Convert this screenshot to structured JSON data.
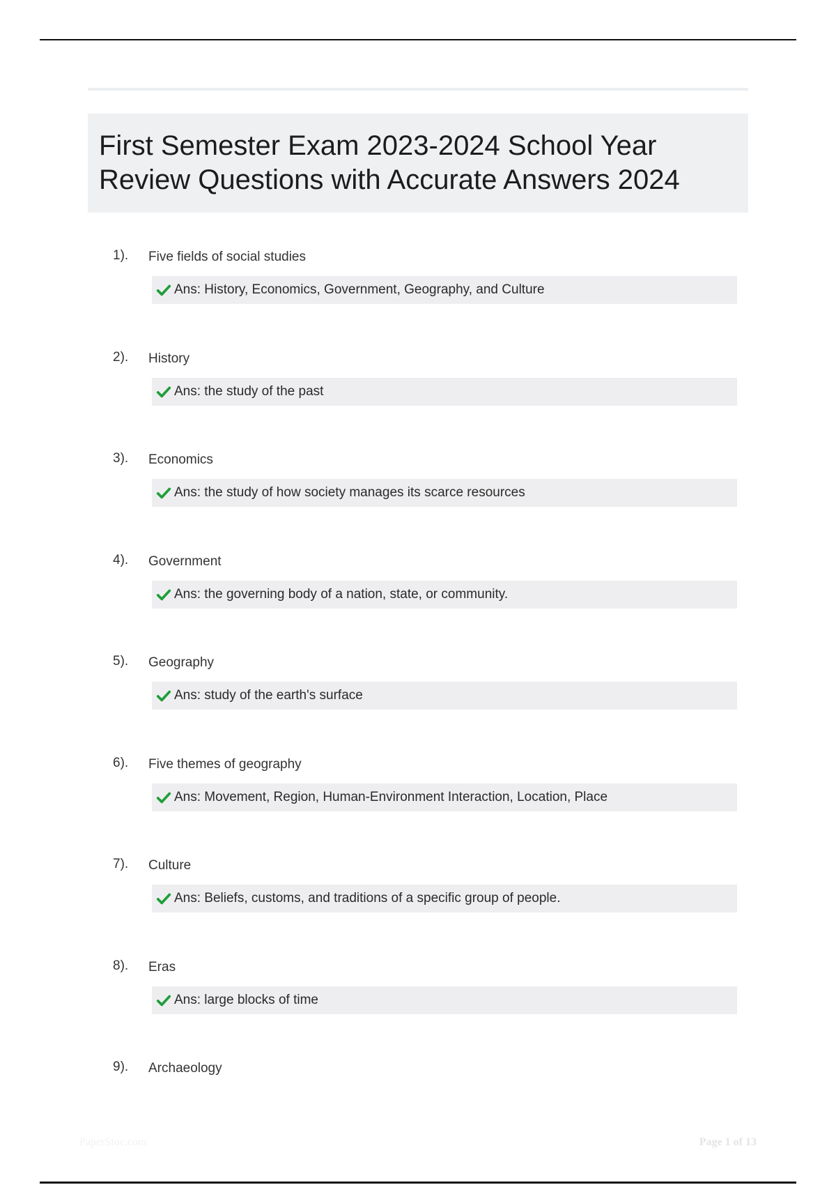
{
  "title": "First Semester Exam 2023-2024 School Year Review Questions with Accurate Answers 2024",
  "accent_color": "#1e9e3a",
  "answer_icon": "check-icon",
  "questions": [
    {
      "number": "1).",
      "question": "Five fields of social studies",
      "answer": "Ans: History, Economics, Government, Geography, and Culture"
    },
    {
      "number": "2).",
      "question": "History",
      "answer": "Ans: the study of the past"
    },
    {
      "number": "3).",
      "question": "Economics",
      "answer": "Ans: the study of how society manages its scarce resources"
    },
    {
      "number": "4).",
      "question": "Government",
      "answer": "Ans: the governing body of a nation, state, or community."
    },
    {
      "number": "5).",
      "question": "Geography",
      "answer": "Ans: study of the earth's surface"
    },
    {
      "number": "6).",
      "question": "Five themes of geography",
      "answer": "Ans: Movement, Region, Human-Environment Interaction, Location, Place"
    },
    {
      "number": "7).",
      "question": "Culture",
      "answer": "Ans: Beliefs, customs, and traditions of a specific group of people."
    },
    {
      "number": "8).",
      "question": "Eras",
      "answer": "Ans: large blocks of time"
    },
    {
      "number": "9).",
      "question": "Archaeology",
      "answer": null
    }
  ],
  "footer": {
    "watermark": "PaperStoc.com",
    "page": "Page 1 of 13"
  }
}
